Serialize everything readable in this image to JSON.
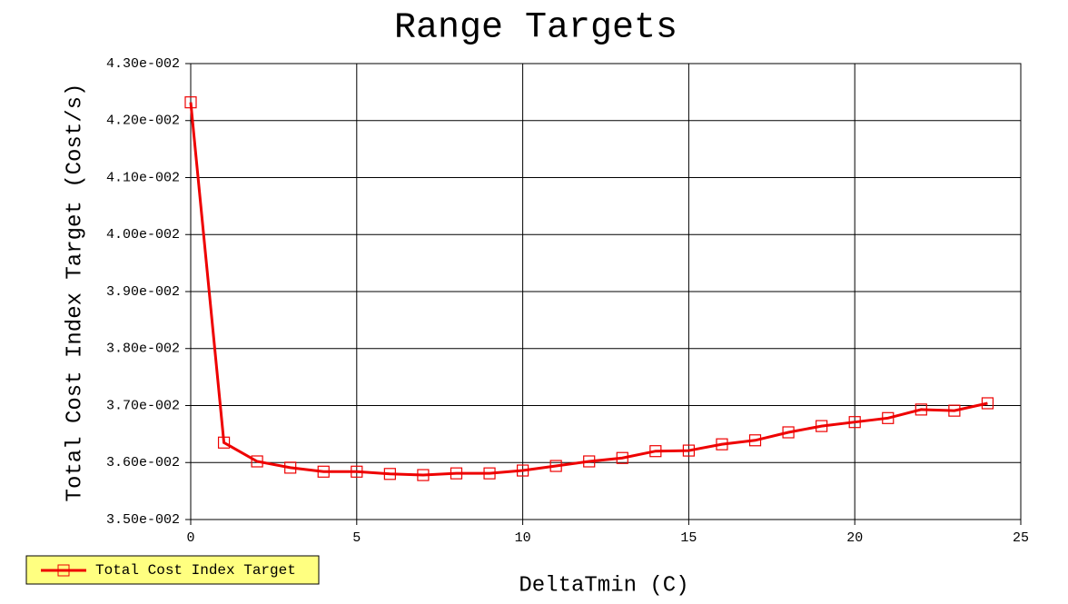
{
  "chart_data": {
    "type": "line",
    "title": "Range Targets",
    "x_label": "DeltaTmin (C)",
    "y_label": "Total Cost Index Target (Cost/s)",
    "x": [
      0,
      1,
      2,
      3,
      4,
      5,
      6,
      7,
      8,
      9,
      10,
      11,
      12,
      13,
      14,
      15,
      16,
      17,
      18,
      19,
      20,
      21,
      22,
      23,
      24
    ],
    "series": [
      {
        "name": "Total Cost Index Target",
        "color": "#ee0000",
        "values": [
          0.04232,
          0.03635,
          0.03602,
          0.03591,
          0.03584,
          0.03584,
          0.0358,
          0.03578,
          0.03581,
          0.03581,
          0.03586,
          0.03594,
          0.03602,
          0.03608,
          0.0362,
          0.03621,
          0.03632,
          0.03639,
          0.03653,
          0.03664,
          0.03671,
          0.03678,
          0.03693,
          0.03691,
          0.03704
        ]
      }
    ],
    "xlim": [
      0,
      25
    ],
    "xticks": [
      0,
      5,
      10,
      15,
      20,
      25
    ],
    "ylim": [
      0.035,
      0.043
    ],
    "yticks": [
      {
        "value": 0.035,
        "label": "3.50e-002"
      },
      {
        "value": 0.036,
        "label": "3.60e-002"
      },
      {
        "value": 0.037,
        "label": "3.70e-002"
      },
      {
        "value": 0.038,
        "label": "3.80e-002"
      },
      {
        "value": 0.039,
        "label": "3.90e-002"
      },
      {
        "value": 0.04,
        "label": "4.00e-002"
      },
      {
        "value": 0.041,
        "label": "4.10e-002"
      },
      {
        "value": 0.042,
        "label": "4.20e-002"
      },
      {
        "value": 0.043,
        "label": "4.30e-002"
      }
    ],
    "grid": true,
    "legend": "bottom-left",
    "legend_color": "#ffff80"
  }
}
